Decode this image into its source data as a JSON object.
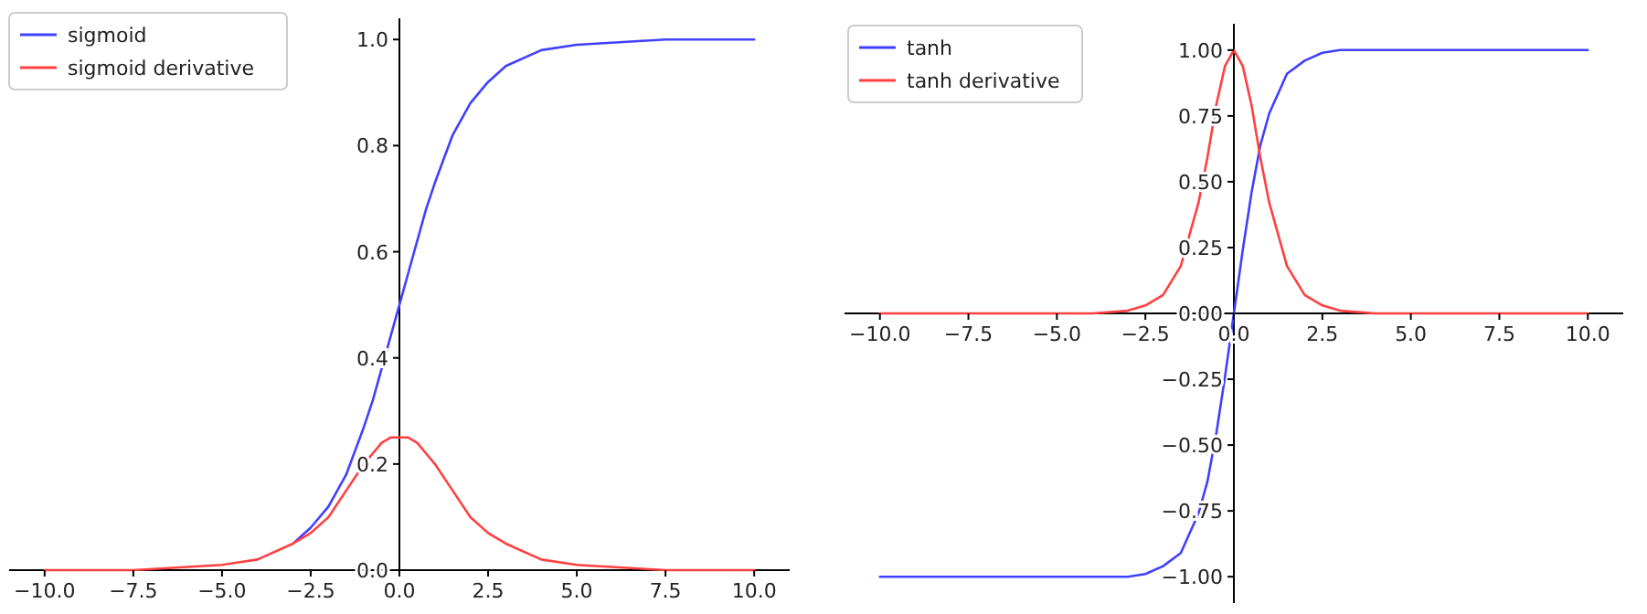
{
  "chart_data": [
    {
      "type": "line",
      "x": [
        -10,
        -7.5,
        -5,
        -4,
        -3,
        -2.5,
        -2,
        -1.5,
        -1,
        -0.75,
        -0.5,
        -0.25,
        0,
        0.25,
        0.5,
        0.75,
        1,
        1.5,
        2,
        2.5,
        3,
        4,
        5,
        7.5,
        10
      ],
      "series": [
        {
          "name": "sigmoid",
          "color": "#4040ff",
          "values": [
            null,
            null,
            null,
            null,
            0.05,
            0.08,
            0.12,
            0.18,
            0.27,
            0.32,
            0.38,
            0.44,
            0.5,
            0.56,
            0.62,
            0.68,
            0.73,
            0.82,
            0.88,
            0.92,
            0.95,
            0.98,
            0.99,
            1,
            1
          ]
        },
        {
          "name": "sigmoid derivative",
          "color": "#ff4040",
          "values": [
            0,
            0,
            0.01,
            0.02,
            0.05,
            0.07,
            0.1,
            0.15,
            0.2,
            0.22,
            0.24,
            0.25,
            0.25,
            0.25,
            0.24,
            0.22,
            0.2,
            0.15,
            0.1,
            0.07,
            0.05,
            0.02,
            0.01,
            0,
            0
          ]
        }
      ],
      "xlim": [
        -11,
        11
      ],
      "ylim": [
        0,
        1.04
      ],
      "xticks": [
        {
          "value": -10,
          "label": "−10.0"
        },
        {
          "value": -7.5,
          "label": "−7.5"
        },
        {
          "value": -5,
          "label": "−5.0"
        },
        {
          "value": -2.5,
          "label": "−2.5"
        },
        {
          "value": 0,
          "label": "0.0"
        },
        {
          "value": 2.5,
          "label": "2.5"
        },
        {
          "value": 5,
          "label": "5.0"
        },
        {
          "value": 7.5,
          "label": "7.5"
        },
        {
          "value": 10,
          "label": "10.0"
        }
      ],
      "yticks": [
        {
          "value": 0,
          "label": "0.0"
        },
        {
          "value": 0.2,
          "label": "0.2"
        },
        {
          "value": 0.4,
          "label": "0.4"
        },
        {
          "value": 0.6,
          "label": "0.6"
        },
        {
          "value": 0.8,
          "label": "0.8"
        },
        {
          "value": 1,
          "label": "1.0"
        }
      ],
      "legend": "top left",
      "grid": false,
      "marker": "none",
      "line_style": "solid"
    },
    {
      "type": "line",
      "x": [
        -10,
        -7.5,
        -5,
        -4,
        -3,
        -2.5,
        -2,
        -1.5,
        -1,
        -0.75,
        -0.5,
        -0.25,
        0,
        0.25,
        0.5,
        0.75,
        1,
        1.5,
        2,
        2.5,
        3,
        4,
        5,
        7.5,
        10
      ],
      "series": [
        {
          "name": "tanh",
          "color": "#4040ff",
          "values": [
            -1,
            -1,
            -1,
            -1,
            -1,
            -0.99,
            -0.96,
            -0.91,
            -0.76,
            -0.64,
            -0.46,
            -0.24,
            0,
            0.24,
            0.46,
            0.64,
            0.76,
            0.91,
            0.96,
            0.99,
            1,
            1,
            1,
            1,
            1
          ]
        },
        {
          "name": "tanh derivative",
          "color": "#ff4040",
          "values": [
            0,
            0,
            0,
            0,
            0.01,
            0.03,
            0.07,
            0.18,
            0.42,
            0.59,
            0.79,
            0.94,
            1,
            0.94,
            0.79,
            0.59,
            0.42,
            0.18,
            0.07,
            0.03,
            0.01,
            0,
            0,
            0,
            0
          ]
        }
      ],
      "xlim": [
        -11,
        11
      ],
      "ylim": [
        -1.1,
        1.1
      ],
      "xticks": [
        {
          "value": -10,
          "label": "−10.0"
        },
        {
          "value": -7.5,
          "label": "−7.5"
        },
        {
          "value": -5,
          "label": "−5.0"
        },
        {
          "value": -2.5,
          "label": "−2.5"
        },
        {
          "value": 0,
          "label": "0.0"
        },
        {
          "value": 2.5,
          "label": "2.5"
        },
        {
          "value": 5,
          "label": "5.0"
        },
        {
          "value": 7.5,
          "label": "7.5"
        },
        {
          "value": 10,
          "label": "10.0"
        }
      ],
      "yticks": [
        {
          "value": -1,
          "label": "−1.00"
        },
        {
          "value": -0.75,
          "label": "−0.75"
        },
        {
          "value": -0.5,
          "label": "−0.50"
        },
        {
          "value": -0.25,
          "label": "−0.25"
        },
        {
          "value": 0,
          "label": "0.00"
        },
        {
          "value": 0.25,
          "label": "0.25"
        },
        {
          "value": 0.5,
          "label": "0.50"
        },
        {
          "value": 0.75,
          "label": "0.75"
        },
        {
          "value": 1,
          "label": "1.00"
        }
      ],
      "legend": "top left",
      "grid": false,
      "marker": "none",
      "line_style": "solid"
    }
  ]
}
